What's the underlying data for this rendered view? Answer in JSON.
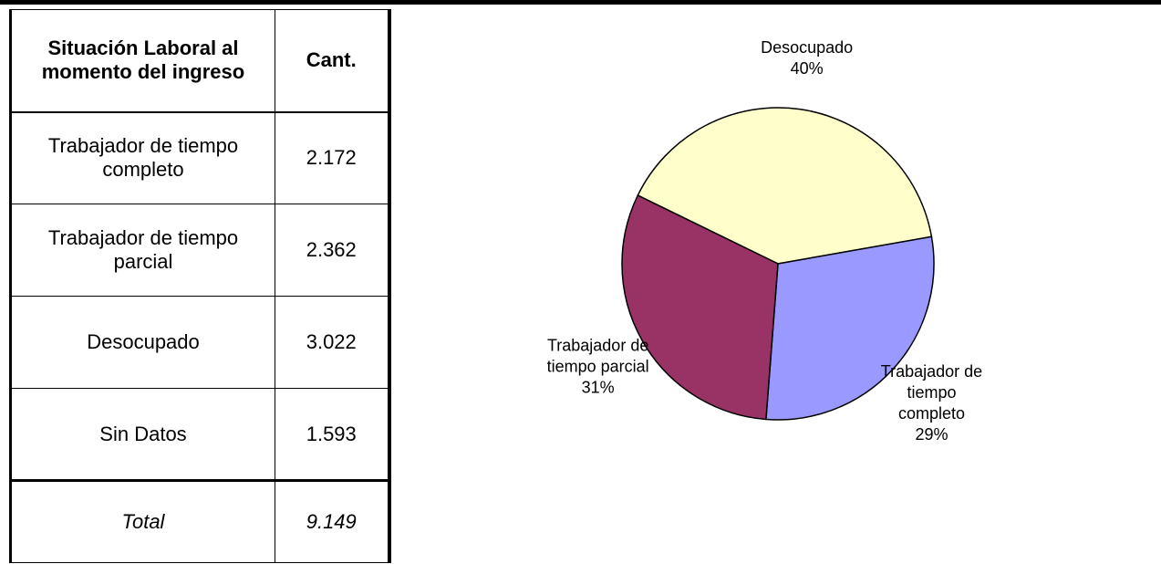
{
  "table": {
    "header": [
      "Situación Laboral al momento del ingreso",
      "Cant."
    ],
    "rows": [
      [
        "Trabajador de tiempo completo",
        "2.172"
      ],
      [
        "Trabajador de tiempo parcial",
        "2.362"
      ],
      [
        "Desocupado",
        "3.022"
      ],
      [
        "Sin Datos",
        "1.593"
      ]
    ],
    "total": [
      "Total",
      "9.149"
    ]
  },
  "chart_data": {
    "type": "pie",
    "categories": [
      "Desocupado",
      "Trabajador de tiempo completo",
      "Trabajador de tiempo parcial"
    ],
    "values": [
      40,
      29,
      31
    ],
    "value_labels": [
      "40%",
      "29%",
      "31%"
    ],
    "colors": [
      "#ffffcc",
      "#9999ff",
      "#993366"
    ]
  }
}
